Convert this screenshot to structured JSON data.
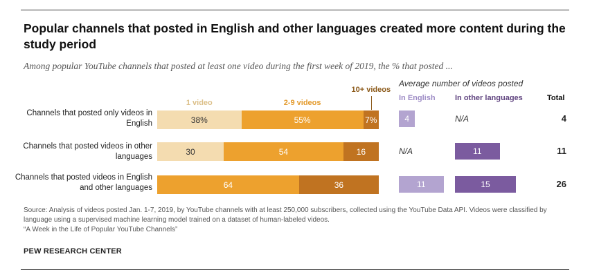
{
  "header": {
    "title": "Popular channels that posted in English and other languages created more content during the study period",
    "subtitle": "Among popular YouTube channels that posted at least one video during the first week of 2019, the % that posted ..."
  },
  "chart_data": {
    "type": "bar",
    "orientation": "horizontal-stacked",
    "categories": [
      "Channels that posted only videos in English",
      "Channels that posted videos in other languages",
      "Channels that posted videos in English and other languages"
    ],
    "series": [
      {
        "name": "1 video",
        "values": [
          38,
          30,
          0
        ],
        "labels": [
          "38%",
          "30",
          ""
        ]
      },
      {
        "name": "2-9 videos",
        "values": [
          55,
          54,
          64
        ],
        "labels": [
          "55%",
          "54",
          "64"
        ]
      },
      {
        "name": "10+ videos",
        "values": [
          7,
          16,
          36
        ],
        "labels": [
          "7%",
          "16",
          "36"
        ]
      }
    ],
    "series_colors": [
      "#f4dcb0",
      "#eda12e",
      "#c07321"
    ],
    "label_colors": [
      "#333333",
      "#ffffff",
      "#ffffff"
    ],
    "legend_colors": [
      "#dcc08a",
      "#e39a2c",
      "#8c5a1a"
    ],
    "xlim": [
      0,
      100
    ]
  },
  "average_panel": {
    "title": "Average number of videos posted",
    "headers": {
      "english": "In English",
      "other": "In other languages",
      "total": "Total"
    },
    "colors": {
      "english_bar": "#b3a4d0",
      "other_bar": "#7b5b9f",
      "english_head": "#9d8bc5",
      "other_head": "#5f437f"
    },
    "max_value": 15,
    "rows": [
      {
        "english": 4,
        "other": null,
        "total": "4"
      },
      {
        "english": null,
        "other": 11,
        "total": "11"
      },
      {
        "english": 11,
        "other": 15,
        "total": "26"
      }
    ],
    "na_text": "N/A"
  },
  "footer": {
    "source": "Source: Analysis of videos posted Jan. 1-7, 2019, by YouTube channels with at least 250,000 subscribers, collected using the YouTube Data API. Videos were classified by language using a supervised machine learning model trained on a dataset of human-labeled videos.",
    "report": "“A Week in the Life of Popular YouTube Channels”",
    "org": "PEW RESEARCH CENTER"
  }
}
